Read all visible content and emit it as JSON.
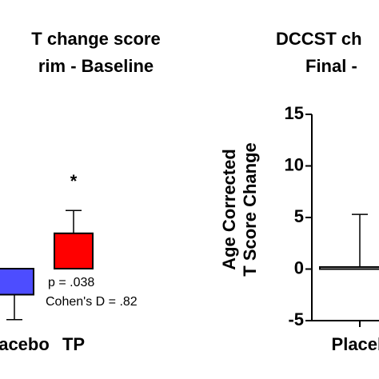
{
  "chart_data": [
    {
      "type": "bar",
      "title": [
        "T change score",
        "rim - Baseline"
      ],
      "categories": [
        "acebo",
        "TP"
      ],
      "values": [
        -2.5,
        3.4
      ],
      "errors": [
        2.4,
        2.2
      ],
      "colors": [
        "#4d4dff",
        "#ff0000"
      ],
      "ylim": [
        -5,
        15
      ],
      "annotations": [
        "*",
        "p = .038",
        "Cohen's D = .82"
      ]
    },
    {
      "type": "bar",
      "title": [
        "DCCST ch",
        "Final -"
      ],
      "ylabel": [
        "Age Corrected",
        "T Score Change"
      ],
      "categories": [
        "Placeb"
      ],
      "values": [
        0.2
      ],
      "errors": [
        5.1
      ],
      "colors": [
        "#ffffff"
      ],
      "ylim": [
        -5,
        15
      ],
      "yticks": [
        -5,
        0,
        5,
        10,
        15
      ]
    }
  ]
}
